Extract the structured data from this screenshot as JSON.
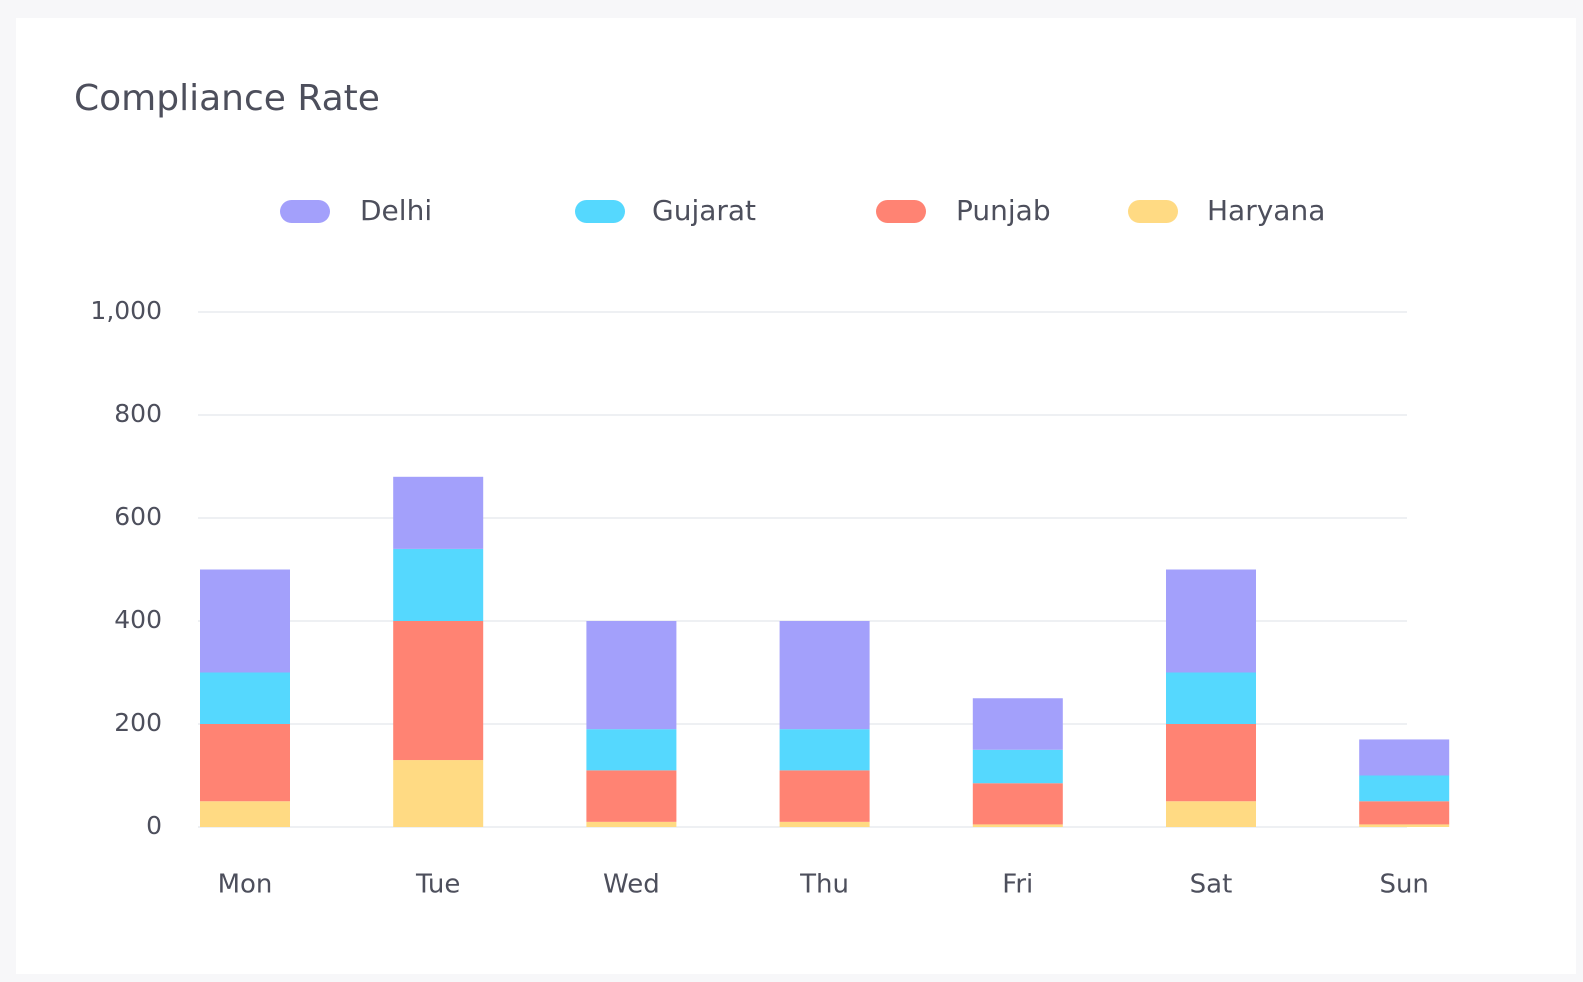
{
  "chart_data": {
    "type": "stacked_bar",
    "title": "Compliance Rate",
    "categories": [
      "Mon",
      "Tue",
      "Wed",
      "Thu",
      "Fri",
      "Sat",
      "Sun"
    ],
    "series": [
      {
        "name": "Delhi",
        "color": "#a3a0fb",
        "values": [
          200,
          140,
          210,
          210,
          100,
          200,
          70
        ]
      },
      {
        "name": "Gujarat",
        "color": "#55d8fe",
        "values": [
          100,
          140,
          80,
          80,
          65,
          100,
          50
        ]
      },
      {
        "name": "Punjab",
        "color": "#ff8373",
        "values": [
          150,
          270,
          100,
          100,
          80,
          150,
          45
        ]
      },
      {
        "name": "Haryana",
        "color": "#ffda83",
        "values": [
          50,
          130,
          10,
          10,
          5,
          50,
          5
        ]
      }
    ],
    "ylim": [
      0,
      1000
    ],
    "yticks": [
      0,
      200,
      400,
      600,
      800,
      {
        "value": 1000,
        "label": "1,000"
      }
    ],
    "grid": true,
    "legend": "top"
  }
}
